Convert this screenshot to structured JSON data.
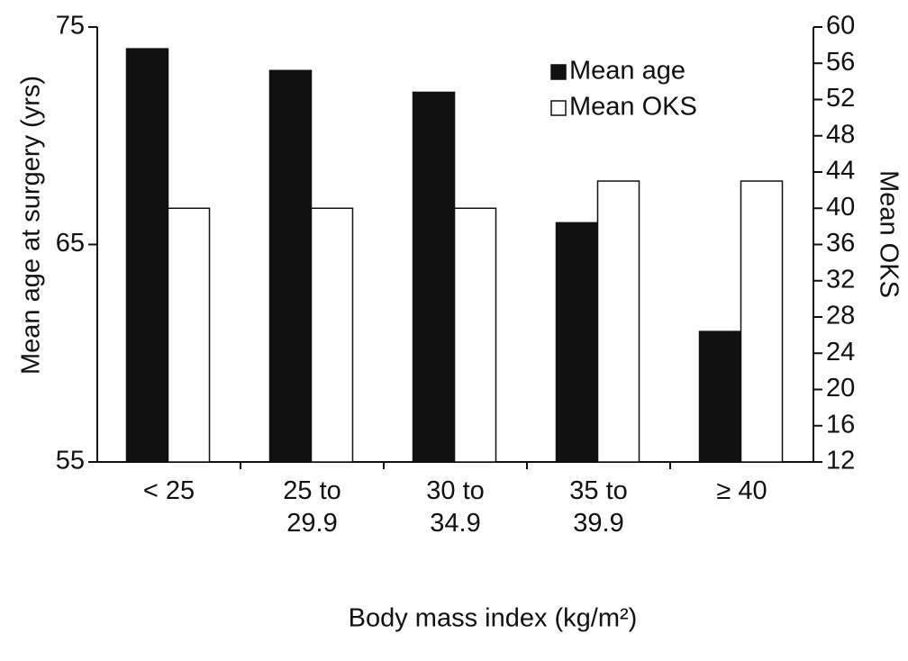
{
  "chart_data": {
    "type": "bar",
    "categories": [
      [
        "< 25"
      ],
      [
        "25 to",
        "29.9"
      ],
      [
        "30 to",
        "34.9"
      ],
      [
        "35 to",
        "39.9"
      ],
      [
        "≥ 40"
      ]
    ],
    "series": [
      {
        "name": "Mean age",
        "color": "#111111",
        "values": [
          74,
          73,
          72,
          66,
          61
        ]
      },
      {
        "name": "Mean OKS",
        "color": "#ffffff",
        "values": [
          40,
          40,
          40,
          43,
          43
        ],
        "axis": "y2"
      }
    ],
    "x_label": "Body mass index (kg/m²)",
    "y_label": "Mean age at surgery (yrs)",
    "y2_label": "Mean OKS",
    "ylim": [
      55,
      75
    ],
    "yticks": [
      55,
      65,
      75
    ],
    "y2lim": [
      12,
      60
    ],
    "y2ticks": [
      12,
      16,
      20,
      24,
      28,
      32,
      36,
      40,
      44,
      48,
      52,
      56,
      60
    ],
    "legend": "top-right"
  }
}
